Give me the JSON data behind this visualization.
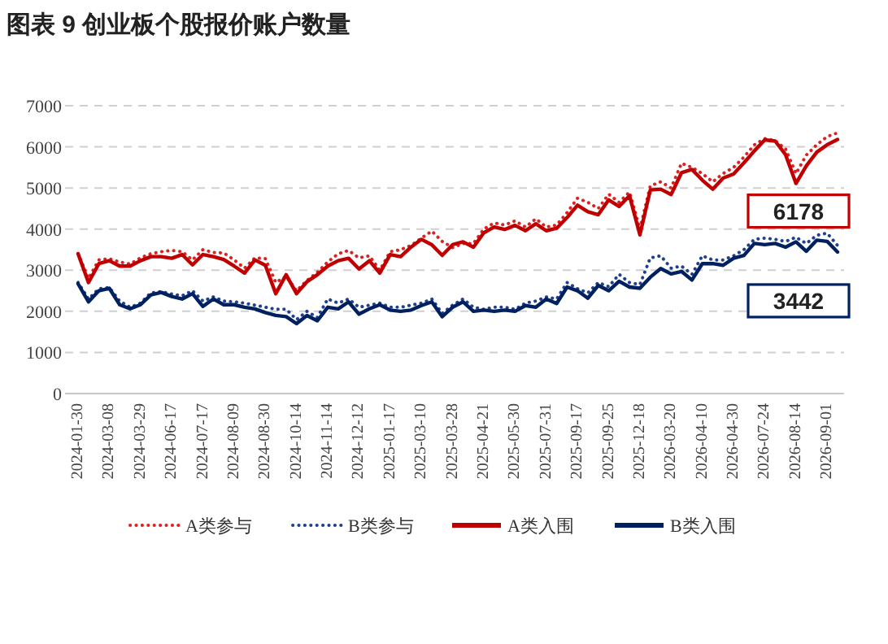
{
  "chart_data": {
    "type": "line",
    "title": "图表 9 创业板个股报价账户数量",
    "categories": [
      "2024-01-30",
      null,
      null,
      "2024-03-08",
      null,
      null,
      "2024-03-29",
      null,
      null,
      "2024-06-17",
      null,
      null,
      "2024-07-17",
      null,
      null,
      "2024-08-09",
      null,
      null,
      "2024-08-30",
      null,
      null,
      "2024-10-14",
      null,
      null,
      "2024-11-14",
      null,
      null,
      "2024-12-12",
      null,
      null,
      "2025-01-17",
      null,
      null,
      "2025-03-10",
      null,
      null,
      "2025-03-28",
      null,
      null,
      "2025-04-21",
      null,
      null,
      "2025-05-30",
      null,
      null,
      "2025-07-31",
      null,
      null,
      "2025-09-17",
      null,
      null,
      "2025-09-25",
      null,
      null,
      "2025-12-18",
      null,
      null,
      "2026-03-20",
      null,
      null,
      "2026-04-10",
      null,
      null,
      "2026-04-30",
      null,
      null,
      "2026-07-24",
      null,
      null,
      "2026-08-14",
      null,
      null,
      "2026-09-01",
      null
    ],
    "series": [
      {
        "name": "A类参与",
        "color": "#e02020",
        "line_style": "dotted",
        "values": [
          3400,
          2800,
          3250,
          3280,
          3200,
          3150,
          3300,
          3400,
          3450,
          3480,
          3450,
          3250,
          3500,
          3430,
          3420,
          3250,
          3050,
          3300,
          3280,
          2700,
          2850,
          2500,
          2750,
          2950,
          3200,
          3400,
          3480,
          3300,
          3350,
          3000,
          3450,
          3500,
          3600,
          3780,
          3950,
          3700,
          3550,
          3650,
          3650,
          4000,
          4150,
          4100,
          4200,
          4050,
          4250,
          4050,
          4100,
          4400,
          4750,
          4650,
          4500,
          4850,
          4650,
          4900,
          4000,
          5050,
          5150,
          5000,
          5600,
          5500,
          5350,
          5150,
          5350,
          5500,
          5750,
          6050,
          6200,
          6150,
          5950,
          5350,
          5800,
          6050,
          6250,
          6340
        ]
      },
      {
        "name": "B类参与",
        "color": "#1f3f8f",
        "line_style": "dotted",
        "values": [
          2700,
          2300,
          2550,
          2580,
          2250,
          2100,
          2200,
          2450,
          2480,
          2420,
          2380,
          2500,
          2250,
          2350,
          2250,
          2230,
          2200,
          2150,
          2100,
          2050,
          2050,
          1800,
          2000,
          1850,
          2300,
          2200,
          2300,
          2100,
          2150,
          2200,
          2100,
          2100,
          2150,
          2200,
          2300,
          1950,
          2150,
          2300,
          2100,
          2050,
          2100,
          2100,
          2050,
          2200,
          2250,
          2350,
          2300,
          2700,
          2550,
          2450,
          2700,
          2600,
          2900,
          2700,
          2650,
          3300,
          3350,
          3050,
          3100,
          2900,
          3350,
          3250,
          3250,
          3350,
          3500,
          3750,
          3780,
          3750,
          3700,
          3800,
          3650,
          3850,
          3900,
          3600
        ]
      },
      {
        "name": "A类入围",
        "color": "#c00000",
        "line_style": "solid",
        "values": [
          3400,
          2700,
          3160,
          3230,
          3100,
          3100,
          3230,
          3330,
          3330,
          3290,
          3380,
          3130,
          3380,
          3330,
          3260,
          3100,
          2930,
          3250,
          3120,
          2430,
          2890,
          2430,
          2720,
          2890,
          3100,
          3230,
          3290,
          3030,
          3230,
          2930,
          3380,
          3330,
          3560,
          3750,
          3620,
          3360,
          3620,
          3690,
          3560,
          3910,
          4050,
          3990,
          4090,
          3960,
          4130,
          3960,
          4020,
          4280,
          4580,
          4420,
          4350,
          4710,
          4550,
          4810,
          3860,
          4950,
          4970,
          4840,
          5370,
          5450,
          5190,
          4970,
          5240,
          5340,
          5610,
          5900,
          6170,
          6140,
          5810,
          5110,
          5540,
          5870,
          6050,
          6178
        ]
      },
      {
        "name": "B类入围",
        "color": "#002060",
        "line_style": "solid",
        "values": [
          2670,
          2230,
          2500,
          2560,
          2160,
          2060,
          2160,
          2400,
          2460,
          2360,
          2300,
          2430,
          2120,
          2300,
          2160,
          2160,
          2100,
          2060,
          1970,
          1900,
          1870,
          1700,
          1900,
          1770,
          2100,
          2060,
          2230,
          1930,
          2060,
          2160,
          2030,
          2000,
          2030,
          2140,
          2230,
          1870,
          2100,
          2230,
          2000,
          2030,
          2000,
          2030,
          2000,
          2140,
          2100,
          2300,
          2190,
          2590,
          2500,
          2320,
          2630,
          2500,
          2730,
          2590,
          2560,
          2830,
          3040,
          2910,
          2970,
          2760,
          3160,
          3160,
          3120,
          3290,
          3360,
          3650,
          3620,
          3650,
          3560,
          3690,
          3460,
          3730,
          3700,
          3442
        ]
      }
    ],
    "annotations": [
      "6178",
      "3442"
    ],
    "ylim": [
      0,
      7000
    ],
    "yticks": [
      0,
      1000,
      2000,
      3000,
      4000,
      5000,
      6000,
      7000
    ],
    "grid": "y",
    "legend": "bottom",
    "marker": "none"
  }
}
